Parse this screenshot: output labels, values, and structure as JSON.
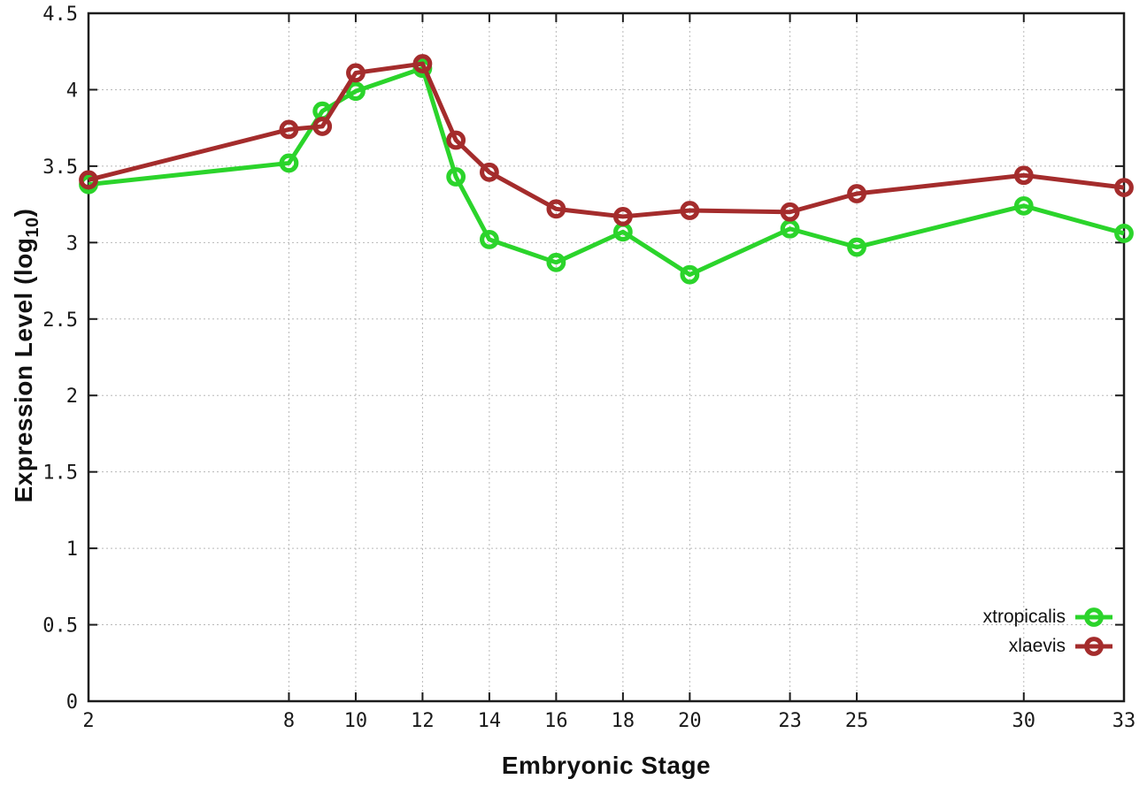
{
  "chart_data": {
    "type": "line",
    "title": "",
    "xlabel": "Embryonic Stage",
    "ylabel": "Expression Level (log10)",
    "ylabel_parts": {
      "pre": "Expression Level (log",
      "sub": "10",
      "post": ")"
    },
    "x": [
      2,
      8,
      9,
      10,
      12,
      13,
      14,
      16,
      18,
      20,
      23,
      25,
      30,
      33
    ],
    "series": [
      {
        "name": "xtropicalis",
        "color": "#2bd42b",
        "marker": "open-circle",
        "values": [
          3.38,
          3.52,
          3.86,
          3.99,
          4.14,
          3.43,
          3.02,
          2.87,
          3.07,
          2.79,
          3.09,
          2.97,
          3.24,
          3.06
        ]
      },
      {
        "name": "xlaevis",
        "color": "#a42c2c",
        "marker": "open-circle",
        "values": [
          3.41,
          3.74,
          3.76,
          4.11,
          4.17,
          3.67,
          3.46,
          3.22,
          3.17,
          3.21,
          3.2,
          3.32,
          3.44,
          3.36
        ]
      }
    ],
    "xlim": [
      2,
      33
    ],
    "ylim": [
      0,
      4.5
    ],
    "xticks": [
      2,
      8,
      10,
      12,
      14,
      16,
      18,
      20,
      23,
      25,
      30,
      33
    ],
    "xtick_labels": [
      "2",
      "8",
      "10",
      "12",
      "14",
      "16",
      "18",
      "20",
      "23",
      "25",
      "30",
      "33"
    ],
    "yticks": [
      0,
      0.5,
      1,
      1.5,
      2,
      2.5,
      3,
      3.5,
      4,
      4.5
    ],
    "ytick_labels": [
      "0",
      "0.5",
      "1",
      "1.5",
      "2",
      "2.5",
      "3",
      "3.5",
      "4",
      "4.5"
    ],
    "grid": true,
    "legend_position": "bottom-right-inside"
  },
  "colors": {
    "background": "#ffffff",
    "axis": "#1c1c1c",
    "grid": "#b8b8b8",
    "tick_label": "#1a1a1a"
  }
}
